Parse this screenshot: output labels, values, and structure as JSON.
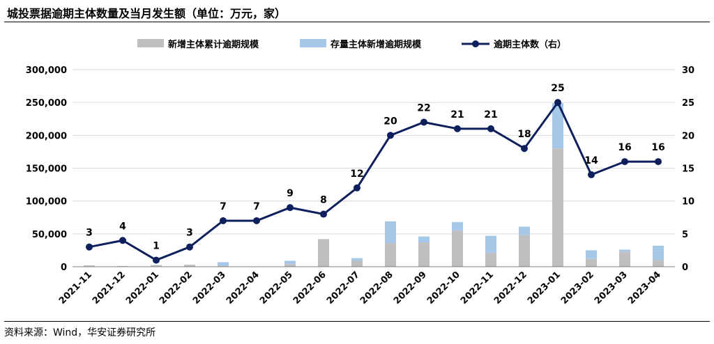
{
  "title": "城投票据逾期主体数量及当月发生额（单位：万元，家）",
  "source": "资料来源：Wind，华安证券研究所",
  "chart_data": {
    "type": "bar+line",
    "categories": [
      "2021-11",
      "2021-12",
      "2022-01",
      "2022-02",
      "2022-03",
      "2022-04",
      "2022-05",
      "2022-06",
      "2022-07",
      "2022-08",
      "2022-09",
      "2022-10",
      "2022-11",
      "2022-12",
      "2023-01",
      "2023-02",
      "2023-03",
      "2023-04"
    ],
    "series": [
      {
        "name": "新增主体累计逾期规模",
        "kind": "bar",
        "stack": "a",
        "axis": "left",
        "color": "#bfbfbf",
        "values": [
          2000,
          1000,
          2500,
          3000,
          1500,
          500,
          4000,
          42000,
          9000,
          36000,
          37000,
          55000,
          21000,
          48000,
          180000,
          12000,
          23000,
          10000
        ]
      },
      {
        "name": "存量主体新增逾期规模",
        "kind": "bar",
        "stack": "a",
        "axis": "left",
        "color": "#a6c8e8",
        "values": [
          0,
          0,
          0,
          0,
          5500,
          0,
          5000,
          0,
          4000,
          33000,
          9000,
          13000,
          26000,
          13000,
          69000,
          13000,
          3000,
          22000
        ]
      },
      {
        "name": "逾期主体数（右）",
        "kind": "line",
        "axis": "right",
        "color": "#0d1f5c",
        "values": [
          3,
          4,
          1,
          3,
          7,
          7,
          9,
          8,
          12,
          20,
          22,
          21,
          21,
          18,
          25,
          14,
          16,
          16
        ]
      }
    ],
    "y_left": {
      "min": 0,
      "max": 300000,
      "ticks": [
        "0",
        "50,000",
        "100,000",
        "150,000",
        "200,000",
        "250,000",
        "300,000"
      ]
    },
    "y_right": {
      "min": 0,
      "max": 30,
      "ticks": [
        "0",
        "5",
        "10",
        "15",
        "20",
        "25",
        "30"
      ]
    },
    "grid": true,
    "legend_position": "top-center"
  }
}
